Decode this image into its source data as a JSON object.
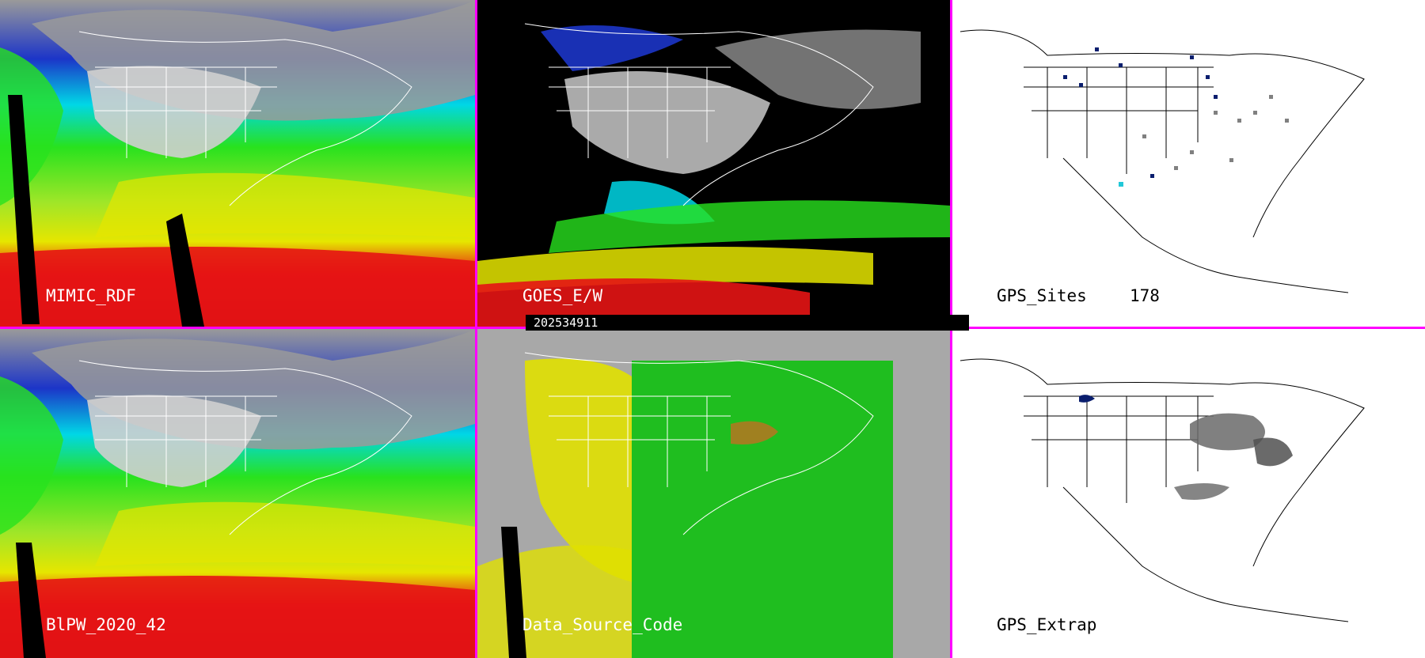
{
  "panels": [
    {
      "id": "mimic-rdf",
      "label": "MIMIC_RDF",
      "style": "tpw"
    },
    {
      "id": "goes-ew",
      "label": "GOES_E/W",
      "style": "goes"
    },
    {
      "id": "gps-sites",
      "label": "GPS_Sites",
      "count": "178",
      "style": "gps"
    },
    {
      "id": "blpw",
      "label": "BlPW_2020_42",
      "style": "tpw"
    },
    {
      "id": "data-source",
      "label": "Data_Source_Code",
      "style": "dsc"
    },
    {
      "id": "gps-extrap",
      "label": "GPS_Extrap",
      "style": "gpsx"
    }
  ],
  "timestamp": "202534911",
  "colors": {
    "divider": "#ff00ff",
    "tpw_scale": [
      "#000000",
      "#3a3a3a",
      "#7f7f7f",
      "#cfcfcf",
      "#0a0a8c",
      "#1c35c8",
      "#00d7e6",
      "#00c878",
      "#28e21e",
      "#a0e628",
      "#e6e600",
      "#f0b400",
      "#e61414",
      "#b40014"
    ],
    "dsc": {
      "background": "#a8a8a8",
      "green": "#10c010",
      "yellow": "#e0e000",
      "brown": "#a08020"
    },
    "gps": {
      "site_dark": "#0a1e6e",
      "site_gray": "#808080",
      "site_cyan": "#22c8d8"
    }
  }
}
